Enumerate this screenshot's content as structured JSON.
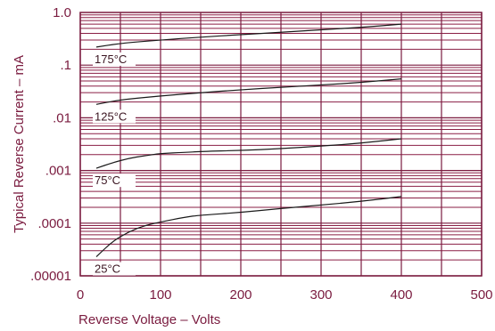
{
  "chart_data": {
    "type": "line",
    "title": "",
    "xlabel": "Reverse Voltage – Volts",
    "ylabel": "Typical Reverse Current – mA",
    "xlim": [
      0,
      500
    ],
    "ylim": [
      1e-05,
      1.0
    ],
    "yscale": "log",
    "grid": true,
    "x_ticks": [
      "0",
      "100",
      "200",
      "300",
      "400",
      "500"
    ],
    "y_ticks": [
      ".00001",
      ".0001",
      ".001",
      ".01",
      ".1",
      "1.0"
    ],
    "series": [
      {
        "name": "175°C",
        "x": [
          20,
          50,
          100,
          150,
          200,
          250,
          300,
          350,
          400
        ],
        "y": [
          0.22,
          0.26,
          0.3,
          0.34,
          0.38,
          0.42,
          0.47,
          0.52,
          0.6
        ]
      },
      {
        "name": "125°C",
        "x": [
          20,
          50,
          100,
          150,
          200,
          250,
          300,
          350,
          400
        ],
        "y": [
          0.018,
          0.022,
          0.026,
          0.03,
          0.034,
          0.038,
          0.042,
          0.047,
          0.055
        ]
      },
      {
        "name": "75°C",
        "x": [
          20,
          40,
          60,
          80,
          100,
          130,
          150,
          200,
          250,
          300,
          350,
          400
        ],
        "y": [
          0.0011,
          0.0014,
          0.0017,
          0.0019,
          0.0021,
          0.0022,
          0.0023,
          0.0024,
          0.0026,
          0.0029,
          0.0033,
          0.004
        ]
      },
      {
        "name": "25°C",
        "x": [
          20,
          40,
          60,
          80,
          100,
          130,
          150,
          200,
          250,
          300,
          350,
          400
        ],
        "y": [
          2.3e-05,
          4.5e-05,
          6.8e-05,
          9e-05,
          0.000105,
          0.00013,
          0.000142,
          0.00016,
          0.00019,
          0.00022,
          0.00026,
          0.00032
        ]
      }
    ]
  }
}
